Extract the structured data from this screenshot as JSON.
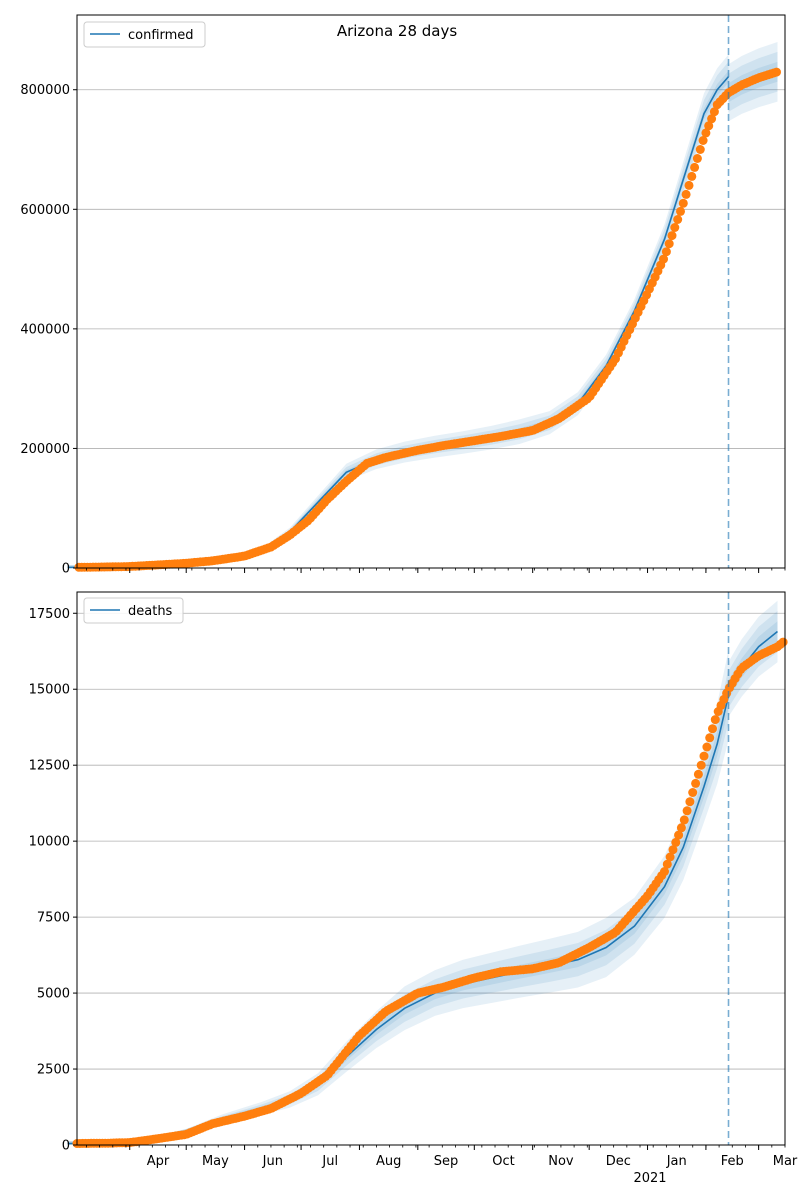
{
  "colors": {
    "model_line": "#1f77b4",
    "band": "#1f77b4",
    "observed": "#ff7f0e",
    "grid": "#b0b0b0",
    "axis": "#000000"
  },
  "chart_data": [
    {
      "type": "line",
      "title": "Arizona 28 days",
      "legend": {
        "label": "confirmed",
        "placement": "top-left"
      },
      "grid": {
        "y": true,
        "x": false
      },
      "ylim": [
        0,
        925000
      ],
      "yticks": [
        0,
        200000,
        400000,
        600000,
        800000
      ],
      "ytick_labels": [
        "0",
        "200000",
        "400000",
        "600000",
        "800000"
      ],
      "x_tick_labels_shown": false,
      "forecast_start": "2021-02-13",
      "model": {
        "dates": [
          "2020-02-28",
          "2020-03-20",
          "2020-04-10",
          "2020-05-01",
          "2020-05-20",
          "2020-06-10",
          "2020-06-25",
          "2020-07-10",
          "2020-07-25",
          "2020-08-10",
          "2020-08-25",
          "2020-09-10",
          "2020-09-25",
          "2020-10-10",
          "2020-10-25",
          "2020-11-10",
          "2020-11-25",
          "2020-12-10",
          "2020-12-25",
          "2021-01-10",
          "2021-01-20",
          "2021-01-31",
          "2021-02-07",
          "2021-02-13"
        ],
        "values": [
          1000,
          1500,
          4000,
          9000,
          15000,
          28000,
          60000,
          110000,
          160000,
          182000,
          194000,
          203000,
          210000,
          218000,
          228000,
          243000,
          275000,
          338000,
          430000,
          550000,
          650000,
          760000,
          800000,
          822000
        ],
        "forecast_dates": [
          "2021-02-13",
          "2021-02-20",
          "2021-03-01",
          "2021-03-11"
        ],
        "forecast_values": [
          795000,
          808000,
          820000,
          830000
        ],
        "band_widths": [
          {
            "fraction": [
              0.2,
              0.22,
              0.23,
              0.22,
              0.2,
              0.17,
              0.12,
              0.1,
              0.09,
              0.09,
              0.09,
              0.09,
              0.09,
              0.09,
              0.09,
              0.08,
              0.07,
              0.055,
              0.045,
              0.045,
              0.045,
              0.045,
              0.045,
              0.045
            ]
          },
          {
            "fraction": [
              0.12,
              0.13,
              0.13,
              0.12,
              0.11,
              0.1,
              0.07,
              0.06,
              0.055,
              0.055,
              0.055,
              0.055,
              0.055,
              0.055,
              0.055,
              0.05,
              0.045,
              0.035,
              0.03,
              0.03,
              0.03,
              0.03,
              0.03,
              0.03
            ]
          },
          {
            "fraction": [
              0.05,
              0.06,
              0.06,
              0.05,
              0.05,
              0.04,
              0.03,
              0.025,
              0.025,
              0.025,
              0.025,
              0.025,
              0.025,
              0.025,
              0.025,
              0.022,
              0.02,
              0.015,
              0.012,
              0.012,
              0.012,
              0.012,
              0.012,
              0.012
            ]
          }
        ]
      },
      "observed": {
        "dates": [
          "2020-02-28",
          "2020-03-15",
          "2020-04-01",
          "2020-04-15",
          "2020-05-01",
          "2020-05-15",
          "2020-06-01",
          "2020-06-15",
          "2020-06-25",
          "2020-07-05",
          "2020-07-15",
          "2020-07-25",
          "2020-08-05",
          "2020-08-15",
          "2020-09-01",
          "2020-09-15",
          "2020-10-01",
          "2020-10-15",
          "2020-11-01",
          "2020-11-15",
          "2020-12-01",
          "2020-12-15",
          "2021-01-01",
          "2021-01-10",
          "2021-01-20",
          "2021-01-31",
          "2021-02-07",
          "2021-02-13",
          "2021-02-20",
          "2021-03-01",
          "2021-03-11"
        ],
        "values": [
          1000,
          1500,
          2500,
          5000,
          8000,
          12000,
          20000,
          35000,
          55000,
          80000,
          115000,
          145000,
          175000,
          185000,
          197000,
          205000,
          213000,
          220000,
          230000,
          250000,
          285000,
          350000,
          460000,
          520000,
          610000,
          720000,
          775000,
          795000,
          808000,
          820000,
          830000
        ]
      }
    },
    {
      "type": "line",
      "title": "",
      "legend": {
        "label": "deaths",
        "placement": "top-left"
      },
      "grid": {
        "y": true,
        "x": false
      },
      "ylim": [
        0,
        18200
      ],
      "yticks": [
        0,
        2500,
        5000,
        7500,
        10000,
        12500,
        15000,
        17500
      ],
      "ytick_labels": [
        "0",
        "2500",
        "5000",
        "7500",
        "10000",
        "12500",
        "15000",
        "17500"
      ],
      "x_tick_labels": [
        "Apr",
        "May",
        "Jun",
        "Jul",
        "Aug",
        "Sep",
        "Oct",
        "Nov",
        "Dec",
        "Jan",
        "Feb",
        "Mar"
      ],
      "x_tick_dates": [
        "2020-04-01",
        "2020-05-01",
        "2020-06-01",
        "2020-07-01",
        "2020-08-01",
        "2020-09-01",
        "2020-10-01",
        "2020-11-01",
        "2020-12-01",
        "2021-01-01",
        "2021-02-01",
        "2021-03-01"
      ],
      "x_year_label": "2021",
      "x_range": [
        "2020-03-04",
        "2021-03-15"
      ],
      "forecast_start": "2021-02-13",
      "model": {
        "dates": [
          "2020-02-28",
          "2020-03-20",
          "2020-04-10",
          "2020-05-01",
          "2020-05-20",
          "2020-06-10",
          "2020-06-25",
          "2020-07-10",
          "2020-07-25",
          "2020-08-10",
          "2020-08-25",
          "2020-09-10",
          "2020-09-25",
          "2020-10-10",
          "2020-10-25",
          "2020-11-10",
          "2020-11-25",
          "2020-12-10",
          "2020-12-25",
          "2021-01-10",
          "2021-01-20",
          "2021-01-31",
          "2021-02-07",
          "2021-02-13"
        ],
        "values": [
          50,
          60,
          150,
          450,
          850,
          1200,
          1500,
          2000,
          2900,
          3800,
          4500,
          5000,
          5300,
          5500,
          5700,
          5900,
          6100,
          6500,
          7200,
          8500,
          9800,
          11800,
          13200,
          14800
        ],
        "forecast_dates": [
          "2021-02-13",
          "2021-02-20",
          "2021-03-01",
          "2021-03-11"
        ],
        "forecast_values": [
          15000,
          15700,
          16400,
          16900
        ],
        "band_widths": [
          {
            "fraction": [
              0.12,
              0.14,
              0.16,
              0.18,
              0.18,
              0.18,
              0.18,
              0.18,
              0.17,
              0.16,
              0.16,
              0.15,
              0.15,
              0.15,
              0.15,
              0.15,
              0.15,
              0.15,
              0.13,
              0.12,
              0.11,
              0.1,
              0.1,
              0.1
            ]
          },
          {
            "fraction": [
              0.07,
              0.08,
              0.1,
              0.11,
              0.11,
              0.11,
              0.11,
              0.11,
              0.1,
              0.1,
              0.1,
              0.09,
              0.09,
              0.09,
              0.09,
              0.09,
              0.09,
              0.09,
              0.08,
              0.07,
              0.065,
              0.06,
              0.06,
              0.06
            ]
          },
          {
            "fraction": [
              0.03,
              0.035,
              0.04,
              0.05,
              0.05,
              0.05,
              0.05,
              0.05,
              0.045,
              0.045,
              0.045,
              0.04,
              0.04,
              0.04,
              0.04,
              0.04,
              0.04,
              0.04,
              0.035,
              0.03,
              0.03,
              0.03,
              0.03,
              0.03
            ]
          }
        ]
      },
      "observed": {
        "dates": [
          "2020-03-04",
          "2020-03-20",
          "2020-04-01",
          "2020-04-15",
          "2020-05-01",
          "2020-05-15",
          "2020-06-01",
          "2020-06-15",
          "2020-07-01",
          "2020-07-15",
          "2020-08-01",
          "2020-08-15",
          "2020-09-01",
          "2020-09-15",
          "2020-10-01",
          "2020-10-15",
          "2020-11-01",
          "2020-11-15",
          "2020-12-01",
          "2020-12-15",
          "2021-01-01",
          "2021-01-10",
          "2021-01-20",
          "2021-01-31",
          "2021-02-07",
          "2021-02-13",
          "2021-02-20",
          "2021-03-01",
          "2021-03-11",
          "2021-03-15"
        ],
        "values": [
          50,
          60,
          80,
          200,
          350,
          700,
          950,
          1200,
          1700,
          2300,
          3600,
          4400,
          5000,
          5200,
          5500,
          5700,
          5800,
          6000,
          6500,
          7000,
          8200,
          9000,
          10600,
          12800,
          14200,
          15000,
          15700,
          16100,
          16400,
          16600
        ]
      }
    }
  ]
}
